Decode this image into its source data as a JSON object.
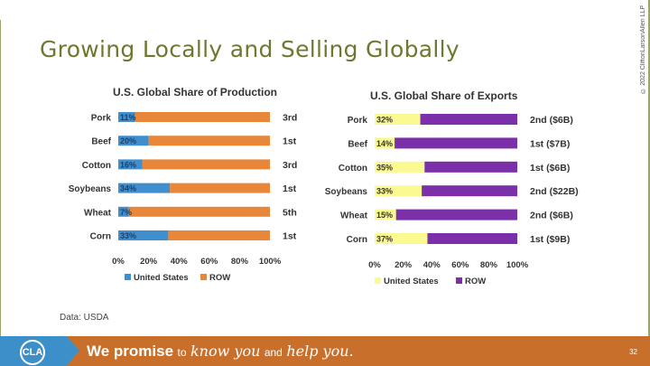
{
  "title": "Growing Locally and Selling Globally",
  "copyright": "© 2022 CliftonLarsonAllen LLP",
  "source": "Data: USDA",
  "footer": {
    "logo_text": "CLA",
    "slogan_bold": "We promise",
    "slogan_to": "to",
    "slogan_script1": "know you",
    "slogan_and": "and",
    "slogan_script2": "help you.",
    "page_number": "32"
  },
  "colors": {
    "us_production": "#3f8fce",
    "row_production": "#e8873a",
    "us_exports": "#fafa91",
    "row_exports": "#7b2fa8"
  },
  "chart_data": [
    {
      "type": "bar",
      "orientation": "horizontal",
      "stacked": true,
      "title": "U.S. Global Share of Production",
      "categories": [
        "Pork",
        "Beef",
        "Cotton",
        "Soybeans",
        "Wheat",
        "Corn"
      ],
      "series": [
        {
          "name": "United States",
          "values": [
            11,
            20,
            16,
            34,
            7,
            33
          ]
        },
        {
          "name": "ROW",
          "values": [
            89,
            80,
            84,
            66,
            93,
            67
          ]
        }
      ],
      "data_labels": [
        "11%",
        "20%",
        "16%",
        "34%",
        "7%",
        "33%"
      ],
      "rank_labels": [
        "3rd",
        "1st",
        "3rd",
        "1st",
        "5th",
        "1st"
      ],
      "xticks": [
        "0%",
        "20%",
        "40%",
        "60%",
        "80%",
        "100%"
      ],
      "xlim": [
        0,
        100
      ]
    },
    {
      "type": "bar",
      "orientation": "horizontal",
      "stacked": true,
      "title": "U.S. Global Share of Exports",
      "categories": [
        "Pork",
        "Beef",
        "Cotton",
        "Soybeans",
        "Wheat",
        "Corn"
      ],
      "series": [
        {
          "name": "United States",
          "values": [
            32,
            14,
            35,
            33,
            15,
            37
          ]
        },
        {
          "name": "ROW",
          "values": [
            68,
            86,
            65,
            67,
            85,
            63
          ]
        }
      ],
      "data_labels": [
        "32%",
        "14%",
        "35%",
        "33%",
        "15%",
        "37%"
      ],
      "rank_labels": [
        "2nd  ($6B)",
        "1st  ($7B)",
        "1st  ($6B)",
        "2nd  ($22B)",
        "2nd  ($6B)",
        "1st  ($9B)"
      ],
      "xticks": [
        "0%",
        "20%",
        "40%",
        "60%",
        "80%",
        "100%"
      ],
      "xlim": [
        0,
        100
      ]
    }
  ]
}
